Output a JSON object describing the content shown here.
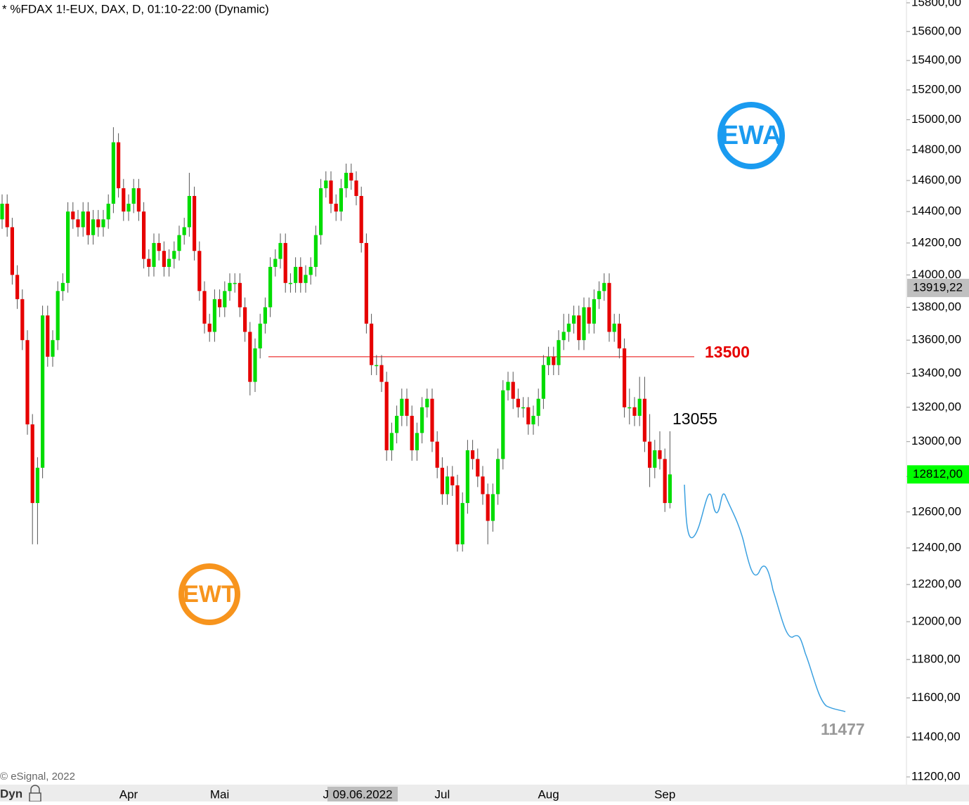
{
  "chart_data": {
    "type": "candlestick",
    "title": "* %FDAX 1!-EUX, DAX, D, 01:10-22:00 (Dynamic)",
    "watermark": "© eSignal, 2022",
    "axis_mode": "Dyn",
    "crosshair_label": "09.06.2022",
    "log": true,
    "colors": {
      "up": "#00dc00",
      "down": "#e60000",
      "wick": "#555555"
    },
    "categories": [
      null,
      null,
      null,
      null,
      null,
      null,
      null,
      null,
      null,
      null,
      null,
      null,
      null,
      null,
      null,
      null,
      null,
      null,
      null,
      null,
      null,
      null,
      null,
      null,
      null,
      "Apr",
      null,
      null,
      null,
      null,
      null,
      null,
      null,
      null,
      null,
      null,
      null,
      null,
      null,
      null,
      null,
      null,
      null,
      "Mai",
      null,
      null,
      null,
      null,
      null,
      null,
      null,
      null,
      null,
      null,
      null,
      null,
      null,
      null,
      null,
      null,
      null,
      null,
      null,
      null,
      "J",
      null,
      null,
      null,
      null,
      null,
      null,
      null,
      null,
      null,
      null,
      null,
      null,
      null,
      null,
      null,
      null,
      null,
      null,
      null,
      null,
      null,
      null,
      "Jul",
      null,
      null,
      null,
      null,
      null,
      null,
      null,
      null,
      null,
      null,
      null,
      null,
      null,
      null,
      null,
      null,
      null,
      null,
      null,
      null,
      "Aug",
      null,
      null,
      null,
      null,
      null,
      null,
      null,
      null,
      null,
      null,
      null,
      null,
      null,
      null,
      null,
      null,
      null,
      null,
      null,
      null,
      null,
      null,
      "Sep",
      null
    ],
    "open": [
      14350,
      14450,
      14300,
      14000,
      13850,
      13600,
      13100,
      12650,
      12850,
      13750,
      13500,
      13600,
      13900,
      13950,
      14400,
      14350,
      14300,
      14400,
      14250,
      14350,
      14300,
      14350,
      14450,
      14850,
      14550,
      14400,
      14450,
      14550,
      14400,
      14100,
      14050,
      14200,
      14150,
      14050,
      14100,
      14150,
      14250,
      14300,
      14500,
      14150,
      13900,
      13700,
      13650,
      13850,
      13800,
      13900,
      13950,
      13950,
      13800,
      13650,
      13350,
      13550,
      13700,
      13800,
      14050,
      14100,
      14200,
      13950,
      13950,
      14050,
      13950,
      14000,
      14050,
      14250,
      14550,
      14600,
      14450,
      14400,
      14550,
      14650,
      14600,
      14500,
      14200,
      13700,
      13450,
      13450,
      13350,
      12950,
      13050,
      13150,
      13250,
      13150,
      12950,
      13050,
      13200,
      13250,
      13000,
      12850,
      12700,
      12800,
      12750,
      12420,
      12650,
      12950,
      12900,
      12800,
      12700,
      12550,
      12700,
      12900,
      13300,
      13350,
      13250,
      13200,
      13200,
      13100,
      13150,
      13250,
      13450,
      13500,
      13450,
      13600,
      13650,
      13700,
      13750,
      13600,
      13800,
      13700,
      13850,
      13900,
      13950,
      13650,
      13700,
      13550,
      13200,
      13200,
      13150,
      13250,
      13000,
      12850,
      12950,
      12900,
      12650
    ],
    "high": [
      14510,
      14510,
      14360,
      14060,
      13910,
      13660,
      13160,
      12910,
      13810,
      13810,
      13660,
      13960,
      14010,
      14460,
      14460,
      14410,
      14460,
      14460,
      14410,
      14410,
      14410,
      14510,
      14950,
      14910,
      14610,
      14510,
      14610,
      14610,
      14460,
      14160,
      14260,
      14260,
      14210,
      14160,
      14210,
      14310,
      14360,
      14650,
      14560,
      14210,
      13960,
      13760,
      13910,
      13910,
      13960,
      14010,
      14010,
      14010,
      13860,
      13710,
      13610,
      13760,
      13860,
      14110,
      14160,
      14260,
      14260,
      14010,
      14110,
      14110,
      14060,
      14110,
      14310,
      14610,
      14660,
      14660,
      14510,
      14610,
      14710,
      14710,
      14660,
      14560,
      14260,
      13760,
      13510,
      13510,
      13410,
      13110,
      13210,
      13310,
      13310,
      13210,
      13110,
      13260,
      13310,
      13310,
      13060,
      12910,
      12860,
      12860,
      12810,
      12710,
      13010,
      13010,
      12960,
      12860,
      12760,
      12760,
      12960,
      13360,
      13410,
      13410,
      13310,
      13260,
      13260,
      13210,
      13310,
      13510,
      13560,
      13560,
      13660,
      13760,
      13760,
      13810,
      13810,
      13860,
      13860,
      13910,
      13960,
      14010,
      14010,
      13760,
      13760,
      13610,
      13310,
      13260,
      13380,
      13380,
      13160,
      13010,
      13060,
      12960,
      13060
    ],
    "low": [
      14290,
      14240,
      13940,
      13790,
      13540,
      13040,
      12420,
      12420,
      12790,
      13440,
      13440,
      13540,
      13840,
      13890,
      14290,
      14240,
      14240,
      14190,
      14190,
      14240,
      14240,
      14290,
      14390,
      14490,
      14340,
      14340,
      14390,
      14340,
      14040,
      13990,
      13990,
      14090,
      13990,
      13990,
      14040,
      14090,
      14190,
      14240,
      14090,
      13840,
      13640,
      13590,
      13590,
      13740,
      13740,
      13840,
      13890,
      13740,
      13590,
      13270,
      13290,
      13490,
      13640,
      13740,
      13990,
      14040,
      13890,
      13890,
      13890,
      13890,
      13890,
      13940,
      13990,
      14190,
      14490,
      14390,
      14340,
      14340,
      14490,
      14540,
      14440,
      14140,
      13640,
      13390,
      13390,
      13290,
      12890,
      12890,
      12990,
      13090,
      13090,
      12890,
      12890,
      12990,
      13140,
      12940,
      12790,
      12640,
      12640,
      12690,
      12380,
      12380,
      12590,
      12840,
      12740,
      12640,
      12420,
      12490,
      12640,
      12840,
      13240,
      13190,
      13140,
      13140,
      13040,
      13040,
      13090,
      13190,
      13390,
      13390,
      13390,
      13540,
      13590,
      13640,
      13540,
      13540,
      13640,
      13640,
      13790,
      13840,
      13590,
      13590,
      13490,
      13140,
      13100,
      13090,
      13090,
      12940,
      12740,
      12790,
      12840,
      12600,
      12620
    ],
    "close": [
      14450,
      14300,
      14000,
      13850,
      13600,
      13100,
      12650,
      12850,
      13750,
      13500,
      13600,
      13900,
      13950,
      14400,
      14350,
      14300,
      14400,
      14250,
      14350,
      14300,
      14350,
      14450,
      14850,
      14550,
      14400,
      14450,
      14550,
      14400,
      14100,
      14050,
      14200,
      14150,
      14050,
      14100,
      14150,
      14250,
      14300,
      14500,
      14150,
      13900,
      13700,
      13650,
      13850,
      13800,
      13900,
      13950,
      13950,
      13800,
      13650,
      13350,
      13550,
      13700,
      13800,
      14050,
      14100,
      14200,
      13950,
      13950,
      14050,
      13950,
      14000,
      14050,
      14250,
      14550,
      14600,
      14450,
      14400,
      14550,
      14650,
      14600,
      14500,
      14200,
      13700,
      13450,
      13450,
      13350,
      12950,
      13050,
      13150,
      13250,
      13150,
      12950,
      13050,
      13200,
      13250,
      13000,
      12850,
      12700,
      12800,
      12750,
      12420,
      12650,
      12950,
      12900,
      12800,
      12700,
      12550,
      12700,
      12900,
      13300,
      13350,
      13250,
      13200,
      13200,
      13100,
      13150,
      13250,
      13450,
      13500,
      13450,
      13600,
      13650,
      13700,
      13750,
      13600,
      13800,
      13700,
      13850,
      13900,
      13950,
      13650,
      13700,
      13550,
      13200,
      13200,
      13150,
      13250,
      13000,
      12850,
      12950,
      12900,
      12650,
      12812
    ],
    "ylim": [
      11200,
      15800
    ],
    "yticks": [
      {
        "value": 15800,
        "label": "15800,00"
      },
      {
        "value": 15600,
        "label": "15600,00"
      },
      {
        "value": 15400,
        "label": "15400,00"
      },
      {
        "value": 15200,
        "label": "15200,00"
      },
      {
        "value": 15000,
        "label": "15000,00"
      },
      {
        "value": 14800,
        "label": "14800,00"
      },
      {
        "value": 14600,
        "label": "14600,00"
      },
      {
        "value": 14400,
        "label": "14400,00"
      },
      {
        "value": 14200,
        "label": "14200,00"
      },
      {
        "value": 14000,
        "label": "14000,00"
      },
      {
        "value": 13800,
        "label": "13800,00"
      },
      {
        "value": 13600,
        "label": "13600,00"
      },
      {
        "value": 13400,
        "label": "13400,00"
      },
      {
        "value": 13200,
        "label": "13200,00"
      },
      {
        "value": 13000,
        "label": "13000,00"
      },
      {
        "value": 12800,
        "label": "12800,00"
      },
      {
        "value": 12600,
        "label": "12600,00"
      },
      {
        "value": 12400,
        "label": "12400,00"
      },
      {
        "value": 12200,
        "label": "12200,00"
      },
      {
        "value": 12000,
        "label": "12000,00"
      },
      {
        "value": 11800,
        "label": "11800,00"
      },
      {
        "value": 11600,
        "label": "11600,00"
      },
      {
        "value": 11400,
        "label": "11400,00"
      },
      {
        "value": 11200,
        "label": "11200,00"
      }
    ],
    "price_labels": [
      {
        "value": 13919.22,
        "label": "13919,22",
        "color": "#c0c0c0"
      },
      {
        "value": 12812,
        "label": "12812,00",
        "color": "#00ff00"
      }
    ],
    "hline": {
      "value": 13500,
      "label": "13500",
      "color": "#e60000"
    },
    "annotations": [
      "13055",
      "11477"
    ],
    "logos": [
      "EWA",
      "EWT"
    ]
  }
}
